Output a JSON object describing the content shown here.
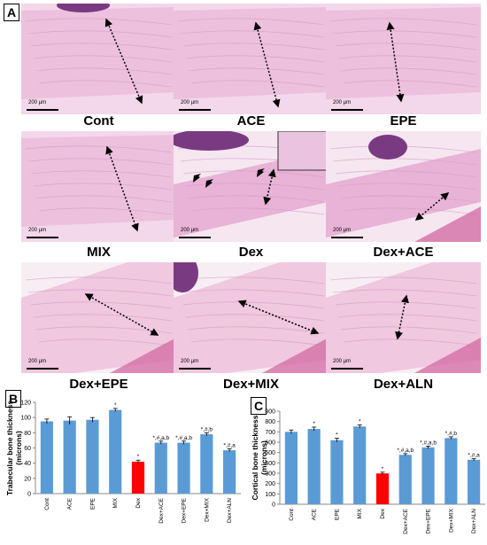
{
  "panels": {
    "a": "A",
    "b": "B",
    "c": "C"
  },
  "histology": {
    "scale_label": "200 µm",
    "captions": [
      "Cont",
      "ACE",
      "EPE",
      "MIX",
      "Dex",
      "Dex+ACE",
      "Dex+EPE",
      "Dex+MIX",
      "Dex+ALN"
    ]
  },
  "chart_data": [
    {
      "type": "bar",
      "ylabel": "Trabecular bone thickness\n(microns)",
      "categories": [
        "Cont",
        "ACE",
        "EPE",
        "MIX",
        "Dex",
        "Dex+ACE",
        "Dex+EPE",
        "Dex+MIX",
        "Dex+ALN"
      ],
      "values": [
        95,
        96,
        97,
        110,
        42,
        67,
        67,
        78,
        57
      ],
      "errors": [
        3,
        5,
        3,
        2,
        2,
        2,
        2,
        2,
        2
      ],
      "annotations": [
        "",
        "",
        "",
        "*",
        "*",
        "*,#,a,b",
        "*,#,a,b",
        "*,#,b",
        "*,#,a"
      ],
      "ylim": [
        0,
        120
      ],
      "yticks": [
        0,
        20,
        40,
        60,
        80,
        100,
        120
      ],
      "colors": [
        "#5b9bd5",
        "#5b9bd5",
        "#5b9bd5",
        "#5b9bd5",
        "#ff0000",
        "#5b9bd5",
        "#5b9bd5",
        "#5b9bd5",
        "#5b9bd5"
      ]
    },
    {
      "type": "bar",
      "ylabel": "Cortical bone thickness\n(microns)",
      "categories": [
        "Cont",
        "ACE",
        "EPE",
        "MIX",
        "Dex",
        "Dex+ACE",
        "Dex+EPE",
        "Dex+MIX",
        "Dex+ALN"
      ],
      "values": [
        700,
        728,
        620,
        752,
        298,
        478,
        550,
        640,
        430
      ],
      "errors": [
        18,
        18,
        18,
        15,
        12,
        12,
        12,
        12,
        10
      ],
      "annotations": [
        "",
        "*",
        "*",
        "*",
        "*",
        "*,#,a,b",
        "*,#,a,b",
        "*,#,b",
        "*,#,a"
      ],
      "ylim": [
        0,
        900
      ],
      "yticks": [
        0,
        100,
        200,
        300,
        400,
        500,
        600,
        700,
        800,
        900
      ],
      "colors": [
        "#5b9bd5",
        "#5b9bd5",
        "#5b9bd5",
        "#5b9bd5",
        "#ff0000",
        "#5b9bd5",
        "#5b9bd5",
        "#5b9bd5",
        "#5b9bd5"
      ]
    }
  ]
}
